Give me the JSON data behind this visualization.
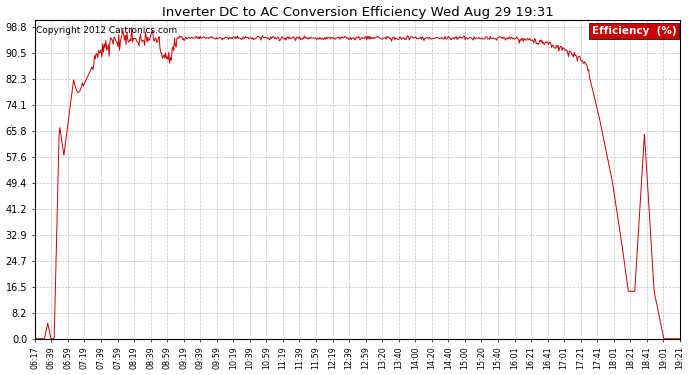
{
  "title": "Inverter DC to AC Conversion Efficiency Wed Aug 29 19:31",
  "copyright": "Copyright 2012 Cartronics.com",
  "legend_label": "Efficiency  (%)",
  "legend_bg": "#cc0000",
  "legend_fg": "#ffffff",
  "line_color": "#cc0000",
  "bg_color": "#ffffff",
  "plot_bg": "#ffffff",
  "grid_color": "#c0c0c0",
  "yticks": [
    0.0,
    8.2,
    16.5,
    24.7,
    32.9,
    41.2,
    49.4,
    57.6,
    65.8,
    74.1,
    82.3,
    90.5,
    98.8
  ],
  "ylim": [
    0.0,
    101.0
  ],
  "x_labels": [
    "06:17",
    "06:39",
    "06:59",
    "07:19",
    "07:39",
    "07:59",
    "08:19",
    "08:39",
    "08:59",
    "09:19",
    "09:39",
    "09:59",
    "10:19",
    "10:39",
    "10:59",
    "11:19",
    "11:39",
    "11:59",
    "12:19",
    "12:39",
    "12:59",
    "13:20",
    "13:40",
    "14:00",
    "14:20",
    "14:40",
    "15:00",
    "15:20",
    "15:40",
    "16:01",
    "16:21",
    "16:41",
    "17:01",
    "17:21",
    "17:41",
    "18:01",
    "18:21",
    "18:41",
    "19:01",
    "19:21"
  ]
}
